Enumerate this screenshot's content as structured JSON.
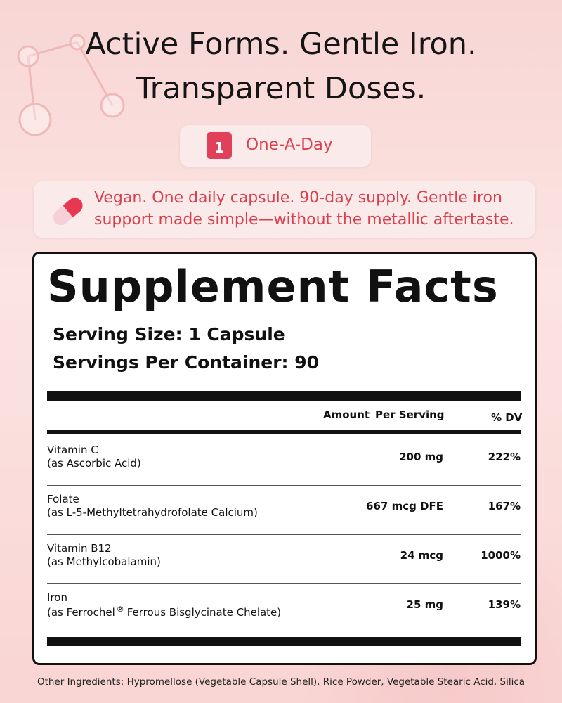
{
  "header": {
    "title_line1": "Active Forms. Gentle Iron.",
    "title_line2": "Transparent Doses."
  },
  "badge": {
    "icon_number": "1",
    "label": "One-A-Day"
  },
  "callout": {
    "line1": "Vegan. One daily capsule. 90-day supply. Gentle iron",
    "line2": "support made simple—without the metallic aftertaste."
  },
  "facts": {
    "title": "Supplement Facts",
    "serving_size": "Serving Size: 1 Capsule",
    "servings_per_container": "Servings Per Container: 90",
    "columns": {
      "amount": "Amount",
      "per_serving": "Per Serving",
      "dv": "% DV"
    },
    "rows": [
      {
        "name": "Vitamin C",
        "source": "(as Ascorbic Acid)",
        "amount": "200 mg",
        "dv": "222%"
      },
      {
        "name": "Folate",
        "source": "(as L-5-Methyltetrahydrofolate Calcium)",
        "amount": "667 mcg DFE",
        "dv": "167%"
      },
      {
        "name": "Vitamin B12",
        "source": "(as Methylcobalamin)",
        "amount": "24 mcg",
        "dv": "1000%"
      },
      {
        "name": "Iron",
        "source": "(as Ferrochel",
        "source_mark": "®",
        "source_end": "Ferrous Bisglycinate Chelate)",
        "amount": "25 mg",
        "dv": "139%"
      }
    ]
  },
  "footer": "Other Ingredients: Hypromellose (Vegetable Capsule Shell), Rice Powder, Vegetable Stearic Acid, Silica"
}
